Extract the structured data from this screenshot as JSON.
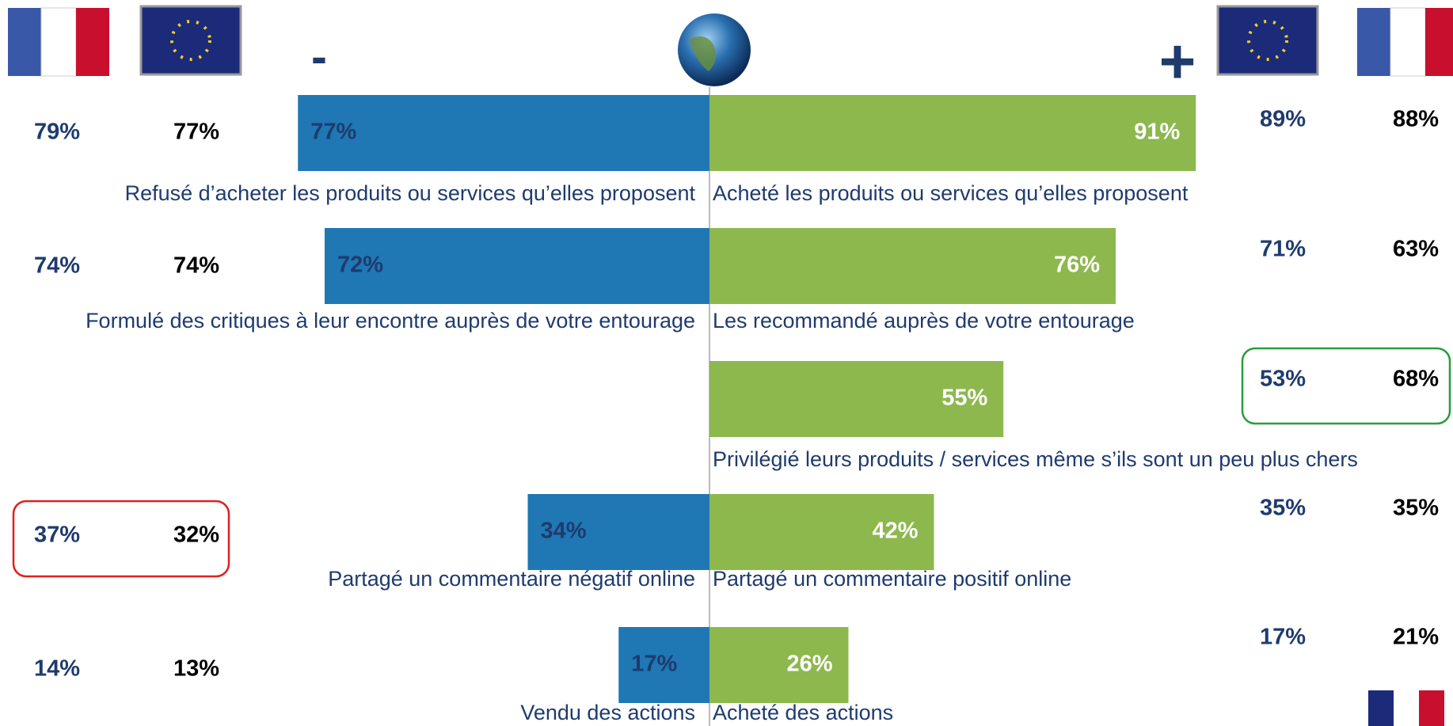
{
  "chart_data": {
    "type": "diverging_bar",
    "negative_symbol": "-",
    "positive_symbol": "+",
    "left": {
      "color": "#1f77b4",
      "categories": [
        "Refusé d’acheter les produits ou services qu’elles proposent",
        "Formulé des critiques à leur encontre auprès de votre entourage",
        null,
        "Partagé un commentaire négatif online",
        "Vendu des actions"
      ],
      "values": [
        77,
        72,
        null,
        34,
        17
      ],
      "value_labels": [
        "77%",
        "72%",
        null,
        "34%",
        "17%"
      ]
    },
    "right": {
      "color": "#8db84e",
      "categories": [
        "Acheté les produits ou services qu’elles proposent",
        "Les recommandé auprès de votre entourage",
        "Privilégié leurs produits / services même s’ils sont un peu plus chers",
        "Partagé un commentaire positif online",
        "Acheté des actions"
      ],
      "values": [
        91,
        76,
        55,
        42,
        26
      ],
      "value_labels": [
        "91%",
        "76%",
        "55%",
        "42%",
        "26%"
      ]
    },
    "left_france": {
      "values": [
        79,
        74,
        null,
        37,
        14
      ],
      "value_labels": [
        "79%",
        "74%",
        null,
        "37%",
        "14%"
      ]
    },
    "left_europe": {
      "values": [
        77,
        74,
        null,
        32,
        13
      ],
      "value_labels": [
        "77%",
        "74%",
        null,
        "32%",
        "13%"
      ]
    },
    "right_europe": {
      "values": [
        89,
        71,
        53,
        35,
        17
      ],
      "value_labels": [
        "89%",
        "71%",
        "53%",
        "35%",
        "17%"
      ]
    },
    "right_france": {
      "values": [
        88,
        63,
        68,
        35,
        21
      ],
      "value_labels": [
        "88%",
        "63%",
        "68%",
        "35%",
        "21%"
      ]
    }
  }
}
